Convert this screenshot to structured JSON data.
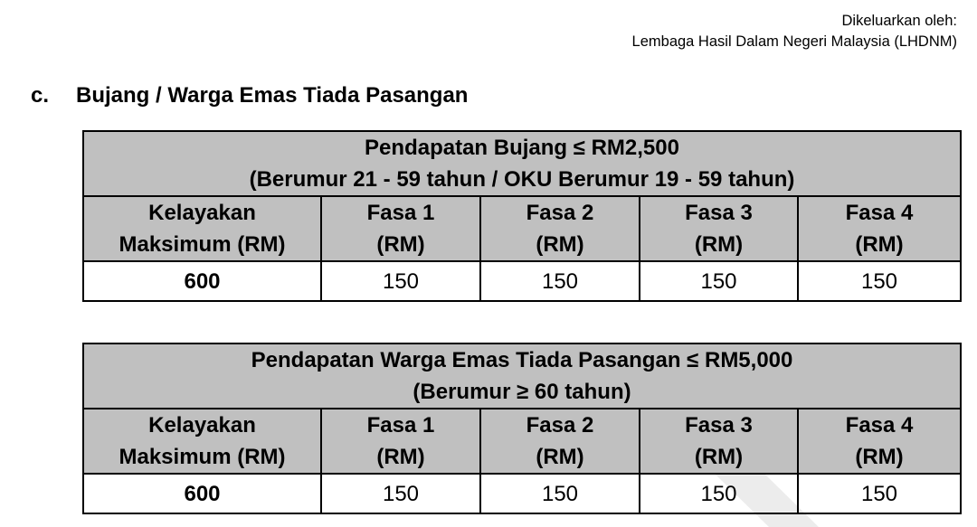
{
  "header": {
    "issued_by_label": "Dikeluarkan oleh:",
    "issuer": "Lembaga Hasil Dalam Negeri Malaysia (LHDNM)"
  },
  "section": {
    "label": "c.",
    "title": "Bujang / Warga Emas Tiada Pasangan"
  },
  "tables": [
    {
      "title_line1": "Pendapatan Bujang ≤ RM2,500",
      "title_line2": "(Berumur 21 - 59 tahun / OKU Berumur 19 - 59 tahun)",
      "columns": [
        {
          "l1": "Kelayakan",
          "l2": "Maksimum (RM)"
        },
        {
          "l1": "Fasa 1",
          "l2": "(RM)"
        },
        {
          "l1": "Fasa 2",
          "l2": "(RM)"
        },
        {
          "l1": "Fasa 3",
          "l2": "(RM)"
        },
        {
          "l1": "Fasa 4",
          "l2": "(RM)"
        }
      ],
      "values": [
        "600",
        "150",
        "150",
        "150",
        "150"
      ]
    },
    {
      "title_line1": "Pendapatan Warga Emas Tiada Pasangan ≤ RM5,000",
      "title_line2": "(Berumur ≥ 60 tahun)",
      "columns": [
        {
          "l1": "Kelayakan",
          "l2": "Maksimum (RM)"
        },
        {
          "l1": "Fasa 1",
          "l2": "(RM)"
        },
        {
          "l1": "Fasa 2",
          "l2": "(RM)"
        },
        {
          "l1": "Fasa 3",
          "l2": "(RM)"
        },
        {
          "l1": "Fasa 4",
          "l2": "(RM)"
        }
      ],
      "values": [
        "600",
        "150",
        "150",
        "150",
        "150"
      ]
    }
  ]
}
